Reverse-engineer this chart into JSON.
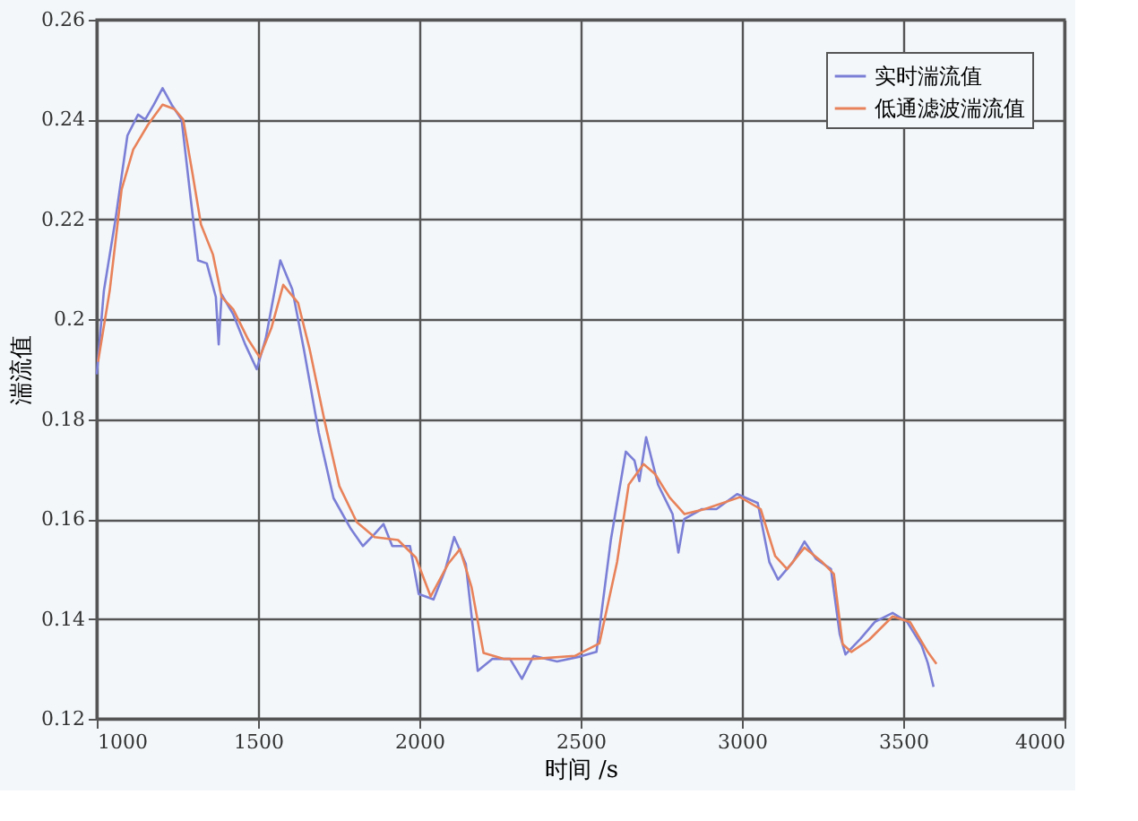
{
  "chart_data": {
    "type": "line",
    "xlabel": "时间 /s",
    "ylabel": "湍流值",
    "xlim": [
      1000,
      4000
    ],
    "xticks": [
      1000,
      1500,
      2000,
      2500,
      3000,
      3500,
      4000
    ],
    "ylim": [
      0.12,
      0.26
    ],
    "yticks": [
      0.12,
      0.14,
      0.16,
      0.18,
      0.2,
      0.22,
      0.24,
      0.26
    ],
    "grid": true,
    "legend": "top right",
    "marker": "none",
    "line_style": "solid",
    "series": [
      {
        "name": "实时湍流值",
        "color": "#7b7fd6",
        "x": [
          1000,
          1022,
          1058,
          1095,
          1128,
          1150,
          1177,
          1204,
          1232,
          1263,
          1292,
          1314,
          1341,
          1369,
          1378,
          1387,
          1423,
          1460,
          1496,
          1524,
          1569,
          1606,
          1642,
          1688,
          1734,
          1788,
          1825,
          1861,
          1889,
          1916,
          1971,
          1998,
          2044,
          2080,
          2108,
          2144,
          2181,
          2226,
          2281,
          2318,
          2354,
          2427,
          2500,
          2549,
          2594,
          2640,
          2667,
          2682,
          2703,
          2740,
          2785,
          2803,
          2821,
          2876,
          2921,
          2985,
          3049,
          3085,
          3112,
          3158,
          3194,
          3230,
          3276,
          3303,
          3321,
          3367,
          3412,
          3467,
          3512,
          3557,
          3576,
          3594
        ],
        "values": [
          0.189,
          0.2057,
          0.22,
          0.2368,
          0.241,
          0.24,
          0.243,
          0.2463,
          0.243,
          0.24,
          0.2237,
          0.2118,
          0.2112,
          0.2045,
          0.195,
          0.205,
          0.201,
          0.195,
          0.19,
          0.1962,
          0.2118,
          0.206,
          0.194,
          0.1773,
          0.1642,
          0.158,
          0.1546,
          0.157,
          0.159,
          0.1546,
          0.1546,
          0.145,
          0.1439,
          0.1498,
          0.1564,
          0.151,
          0.1296,
          0.132,
          0.132,
          0.128,
          0.1326,
          0.1315,
          0.1325,
          0.1334,
          0.156,
          0.1735,
          0.1717,
          0.1676,
          0.1764,
          0.1669,
          0.161,
          0.1533,
          0.16,
          0.162,
          0.162,
          0.165,
          0.1632,
          0.1514,
          0.1479,
          0.1514,
          0.1555,
          0.152,
          0.15,
          0.137,
          0.1329,
          0.136,
          0.1394,
          0.1412,
          0.1394,
          0.1347,
          0.1312,
          0.1264
        ]
      },
      {
        "name": "低通滤波湍流值",
        "color": "#e8825a",
        "x": [
          1004,
          1040,
          1077,
          1113,
          1159,
          1204,
          1241,
          1268,
          1296,
          1323,
          1360,
          1387,
          1423,
          1469,
          1505,
          1542,
          1578,
          1624,
          1660,
          1706,
          1752,
          1806,
          1861,
          1934,
          1989,
          2035,
          2089,
          2126,
          2162,
          2199,
          2263,
          2354,
          2482,
          2558,
          2613,
          2649,
          2695,
          2731,
          2776,
          2822,
          2885,
          2994,
          3058,
          3103,
          3140,
          3194,
          3249,
          3285,
          3312,
          3339,
          3394,
          3467,
          3521,
          3576,
          3603
        ],
        "values": [
          0.1915,
          0.2057,
          0.226,
          0.234,
          0.239,
          0.243,
          0.2421,
          0.24,
          0.2295,
          0.219,
          0.213,
          0.2045,
          0.202,
          0.196,
          0.1924,
          0.1984,
          0.2069,
          0.2033,
          0.194,
          0.1797,
          0.1666,
          0.1594,
          0.1564,
          0.1558,
          0.1523,
          0.1445,
          0.151,
          0.154,
          0.1463,
          0.1332,
          0.132,
          0.132,
          0.1326,
          0.1351,
          0.1514,
          0.1669,
          0.171,
          0.169,
          0.1643,
          0.161,
          0.162,
          0.1644,
          0.162,
          0.1526,
          0.15,
          0.1543,
          0.1514,
          0.149,
          0.135,
          0.1334,
          0.1358,
          0.1405,
          0.1394,
          0.1334,
          0.131
        ]
      }
    ]
  }
}
